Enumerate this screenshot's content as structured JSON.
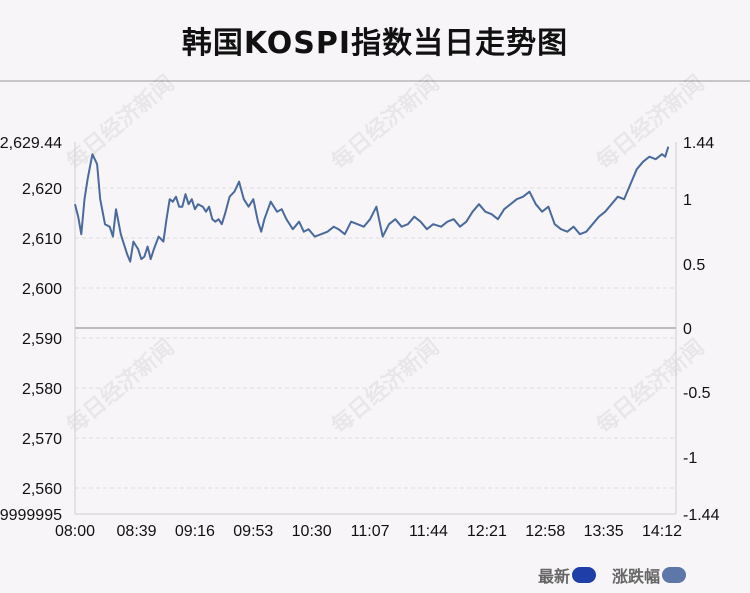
{
  "title": "韩国KOSPI指数当日走势图",
  "watermark": "每日经济新闻",
  "colors": {
    "line": "#4a6a9c",
    "zero_line": "#bdbbbd",
    "grid": "#e0dde0",
    "latest": "#1f3fa8",
    "change": "#5c77a8"
  },
  "legend": [
    {
      "label": "最新",
      "color": "#1f3fa8"
    },
    {
      "label": "涨跌幅",
      "color": "#5c77a8"
    }
  ],
  "chart_data": {
    "type": "line",
    "x_ticks": [
      "08:00",
      "08:39",
      "09:16",
      "09:53",
      "10:30",
      "11:07",
      "11:44",
      "12:21",
      "12:58",
      "13:35",
      "14:12"
    ],
    "y_left_ticks": [
      "2,629.44",
      "2,620",
      "2,610",
      "2,600",
      "2,590",
      "2,580",
      "2,570",
      "2,560",
      "9999995"
    ],
    "y_right_ticks": [
      "1.44",
      "1",
      "0.5",
      "0",
      "-0.5",
      "-1",
      "-1.44"
    ],
    "ylim_left": [
      2555.0,
      2629.44
    ],
    "ylim_right": [
      -1.44,
      1.44
    ],
    "baseline": 2592.2,
    "grid": true,
    "series": [
      {
        "name": "最新",
        "x": [
          "08:00",
          "08:02",
          "08:04",
          "08:06",
          "08:08",
          "08:11",
          "08:14",
          "08:16",
          "08:19",
          "08:22",
          "08:24",
          "08:26",
          "08:29",
          "08:31",
          "08:33",
          "08:35",
          "08:37",
          "08:40",
          "08:42",
          "08:44",
          "08:46",
          "08:48",
          "08:50",
          "08:53",
          "08:56",
          "08:58",
          "09:00",
          "09:02",
          "09:04",
          "09:06",
          "09:08",
          "09:10",
          "09:12",
          "09:14",
          "09:16",
          "09:18",
          "09:21",
          "09:23",
          "09:25",
          "09:27",
          "09:29",
          "09:31",
          "09:33",
          "09:35",
          "09:38",
          "09:41",
          "09:44",
          "09:47",
          "09:50",
          "09:53",
          "09:56",
          "09:58",
          "10:00",
          "10:04",
          "10:08",
          "10:11",
          "10:14",
          "10:18",
          "10:22",
          "10:25",
          "10:28",
          "10:32",
          "10:36",
          "10:40",
          "10:44",
          "10:47",
          "10:51",
          "10:55",
          "10:59",
          "11:03",
          "11:07",
          "11:11",
          "11:15",
          "11:19",
          "11:23",
          "11:27",
          "11:31",
          "11:35",
          "11:39",
          "11:43",
          "11:47",
          "11:52",
          "11:56",
          "12:00",
          "12:04",
          "12:08",
          "12:12",
          "12:16",
          "12:20",
          "12:24",
          "12:28",
          "12:32",
          "12:36",
          "12:40",
          "12:44",
          "12:48",
          "12:52",
          "12:56",
          "13:00",
          "13:04",
          "13:08",
          "13:12",
          "13:16",
          "13:20",
          "13:24",
          "13:28",
          "13:32",
          "13:36",
          "13:40",
          "13:44",
          "13:48",
          "13:52",
          "13:56",
          "14:00",
          "14:04",
          "14:08",
          "14:12",
          "14:14",
          "14:16"
        ],
        "values": [
          2617.0,
          2614.5,
          2611.0,
          2618.0,
          2622.0,
          2627.0,
          2625.0,
          2618.0,
          2613.0,
          2612.5,
          2610.5,
          2616.0,
          2611.0,
          2609.0,
          2607.0,
          2605.5,
          2609.5,
          2608.0,
          2606.0,
          2606.5,
          2608.5,
          2606.0,
          2608.0,
          2610.5,
          2609.5,
          2614.0,
          2618.0,
          2617.5,
          2618.5,
          2616.5,
          2616.5,
          2619.0,
          2617.0,
          2618.0,
          2616.0,
          2617.0,
          2616.5,
          2615.5,
          2616.5,
          2614.0,
          2613.5,
          2614.0,
          2613.0,
          2615.0,
          2618.5,
          2619.5,
          2621.5,
          2618.0,
          2616.5,
          2618.0,
          2613.5,
          2611.5,
          2614.0,
          2617.5,
          2615.5,
          2616.0,
          2614.0,
          2612.0,
          2613.5,
          2611.5,
          2612.0,
          2610.5,
          2611.0,
          2611.5,
          2612.5,
          2612.0,
          2611.0,
          2613.5,
          2613.0,
          2612.5,
          2614.0,
          2616.5,
          2610.5,
          2613.0,
          2614.0,
          2612.5,
          2613.0,
          2614.5,
          2613.5,
          2612.0,
          2613.0,
          2612.5,
          2613.5,
          2614.0,
          2612.5,
          2613.5,
          2615.5,
          2617.0,
          2615.5,
          2615.0,
          2614.0,
          2616.0,
          2617.0,
          2618.0,
          2618.5,
          2619.5,
          2617.0,
          2615.5,
          2616.5,
          2613.0,
          2612.0,
          2611.5,
          2612.5,
          2611.0,
          2611.5,
          2613.0,
          2614.5,
          2615.5,
          2617.0,
          2618.5,
          2618.0,
          2621.0,
          2624.0,
          2625.5,
          2626.5,
          2626.0,
          2627.0,
          2626.5,
          2628.5
        ]
      }
    ]
  }
}
